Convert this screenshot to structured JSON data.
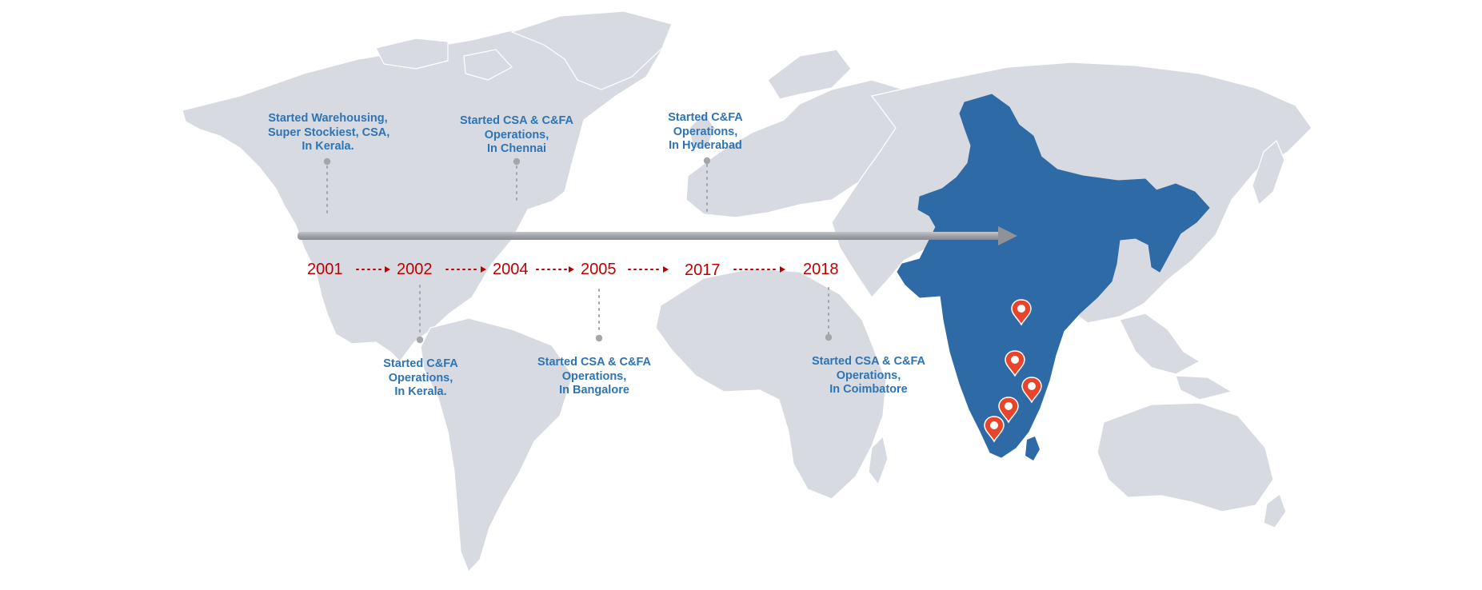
{
  "years": [
    "2001",
    "2002",
    "2004",
    "2005",
    "2017",
    "2018"
  ],
  "milestones": [
    {
      "lines": [
        "Started Warehousing,",
        "Super Stockiest, CSA,",
        "In Kerala."
      ]
    },
    {
      "lines": [
        "Started C&FA",
        "Operations,",
        "In Kerala."
      ]
    },
    {
      "lines": [
        "Started CSA & C&FA",
        "Operations,",
        "In Chennai"
      ]
    },
    {
      "lines": [
        "Started CSA & C&FA",
        "Operations,",
        "In Bangalore"
      ]
    },
    {
      "lines": [
        "Started C&FA",
        "Operations,",
        "In Hyderabad"
      ]
    },
    {
      "lines": [
        "Started CSA & C&FA",
        "Operations,",
        "In Coimbatore"
      ]
    }
  ],
  "colors": {
    "landmass": "#D7DBE1",
    "india": "#2E6AA5",
    "caption_text": "#2E74B5",
    "year_text": "#C00000",
    "timeline_arrow": "#A4A7AA",
    "connector": "#A6A6A6",
    "pin": "#E8442B"
  },
  "icons": {
    "location_pin": "map-pin-icon",
    "timeline_arrow": "arrow-right-icon"
  }
}
